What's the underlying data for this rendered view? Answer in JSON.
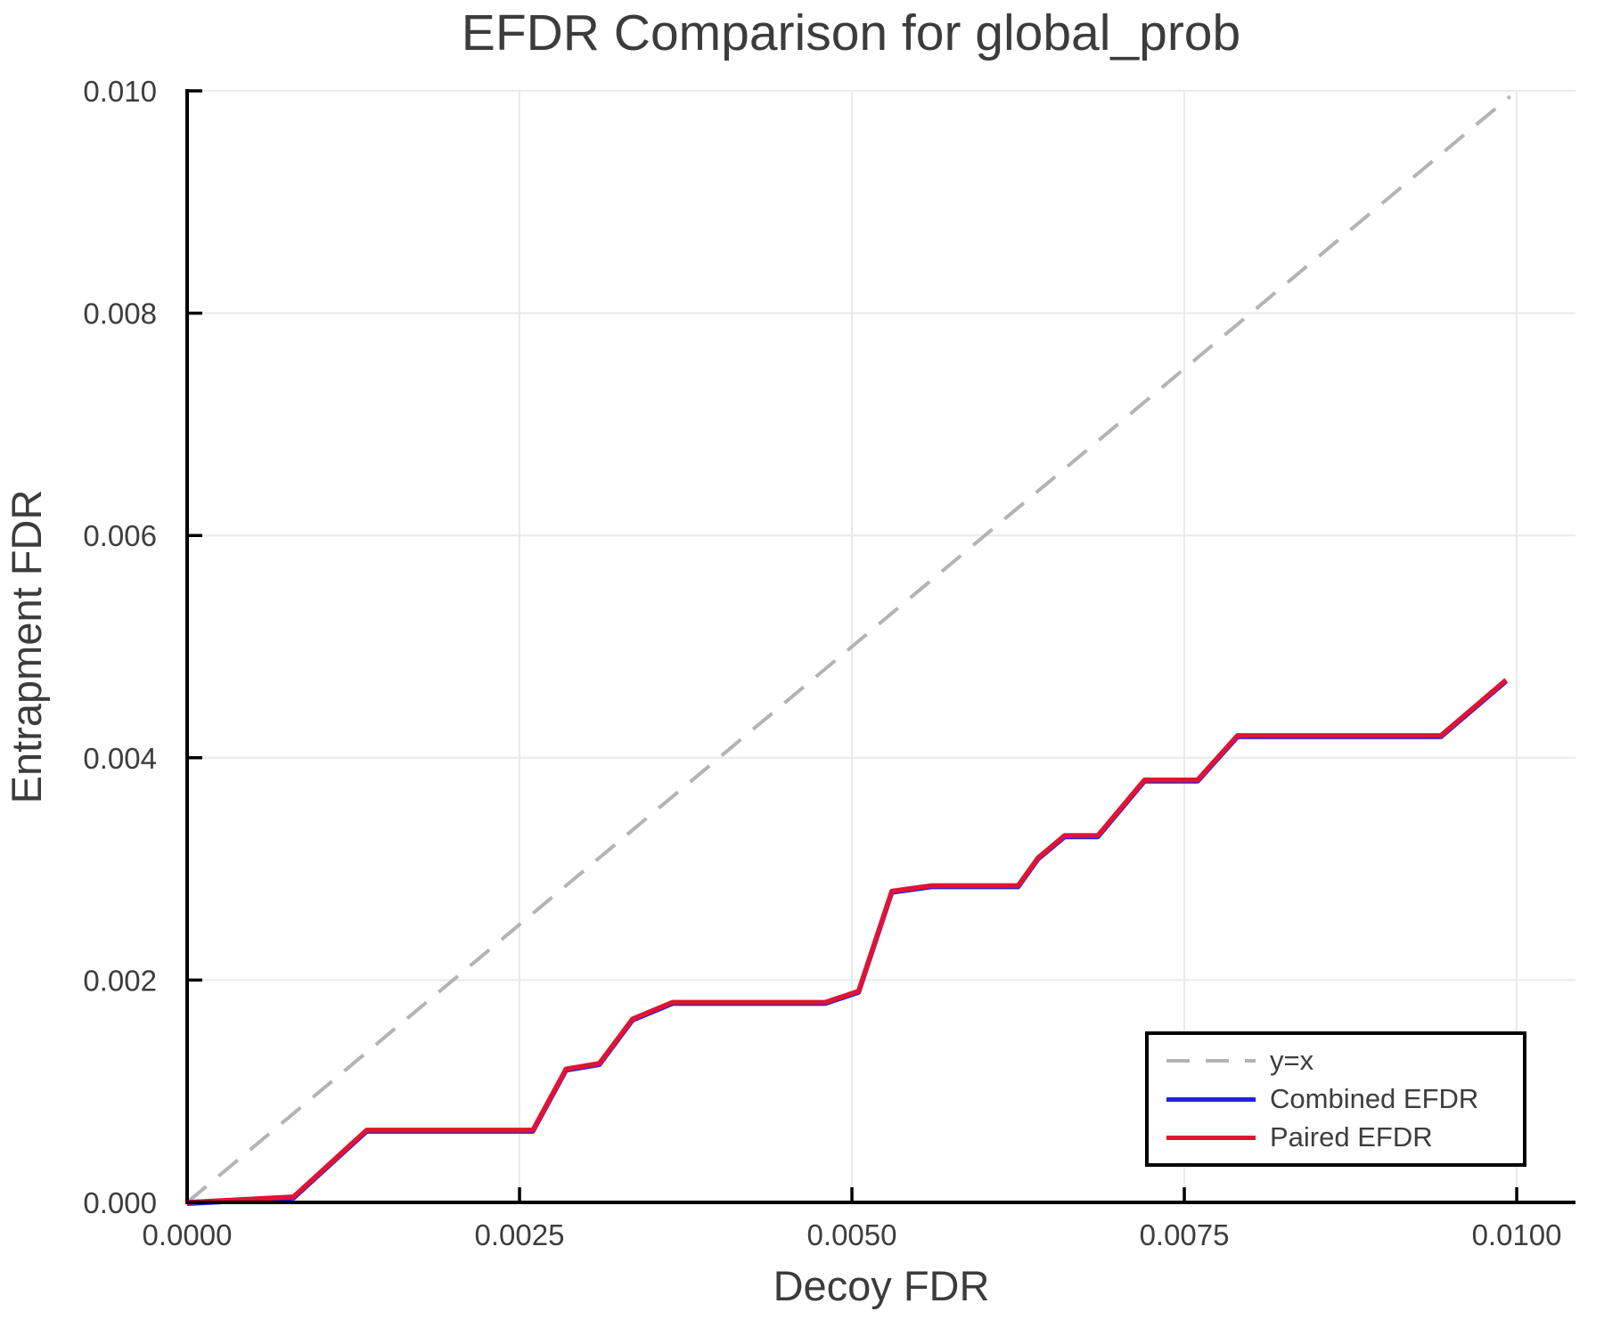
{
  "figure": {
    "title": "EFDR Comparison for global_prob",
    "background": "#ffffff"
  },
  "chart_data": {
    "type": "line",
    "title": "EFDR Comparison for global_prob",
    "xlabel": "Decoy FDR",
    "ylabel": "Entrapment FDR",
    "xlim": [
      0.0,
      0.010442
    ],
    "ylim": [
      0.0,
      0.01
    ],
    "grid": true,
    "legend_position": "bottom-right",
    "colors": {
      "grid": "#eaeaea",
      "axis": "#000000",
      "text": "#3d3d3d",
      "background": "#ffffff"
    },
    "xticks": {
      "values": [
        0.0,
        0.0025,
        0.005,
        0.0075,
        0.01
      ],
      "labels": [
        "0.0000",
        "0.0025",
        "0.0050",
        "0.0075",
        "0.0100"
      ]
    },
    "yticks": {
      "values": [
        0.0,
        0.002,
        0.004,
        0.006,
        0.008,
        0.01
      ],
      "labels": [
        "0.000",
        "0.002",
        "0.004",
        "0.006",
        "0.008",
        "0.010"
      ]
    },
    "series": [
      {
        "name": "y=x",
        "style": "dashed",
        "color": "#b3b3b3",
        "x": [
          0.0,
          0.00995
        ],
        "y": [
          0.0,
          0.00995
        ],
        "role": "reference-diagonal"
      },
      {
        "name": "Combined EFDR",
        "style": "solid",
        "color": "#2121eb",
        "x": [
          0.0,
          0.0008,
          0.00135,
          0.0026,
          0.00285,
          0.0031,
          0.00335,
          0.00365,
          0.0048,
          0.00505,
          0.0053,
          0.0056,
          0.00625,
          0.0064,
          0.0066,
          0.00685,
          0.0072,
          0.0076,
          0.0079,
          0.00943,
          0.00992
        ],
        "y": [
          0.0,
          5e-05,
          0.00065,
          0.00065,
          0.0012,
          0.00125,
          0.00165,
          0.0018,
          0.0018,
          0.0019,
          0.0028,
          0.00285,
          0.00285,
          0.0031,
          0.0033,
          0.0033,
          0.0038,
          0.0038,
          0.0042,
          0.0042,
          0.0047
        ],
        "visibility": "almost entirely hidden beneath Paired EFDR; blue edge visible only near origin"
      },
      {
        "name": "Paired EFDR",
        "style": "solid",
        "color": "#e01432",
        "x": [
          0.0,
          0.0008,
          0.00135,
          0.0026,
          0.00285,
          0.0031,
          0.00335,
          0.00365,
          0.0048,
          0.00505,
          0.0053,
          0.0056,
          0.00625,
          0.0064,
          0.0066,
          0.00685,
          0.0072,
          0.0076,
          0.0079,
          0.00943,
          0.00992
        ],
        "y": [
          0.0,
          5e-05,
          0.00065,
          0.00065,
          0.0012,
          0.00125,
          0.00165,
          0.0018,
          0.0018,
          0.0019,
          0.0028,
          0.00285,
          0.00285,
          0.0031,
          0.0033,
          0.0033,
          0.0038,
          0.0038,
          0.0042,
          0.0042,
          0.0047
        ]
      }
    ]
  }
}
